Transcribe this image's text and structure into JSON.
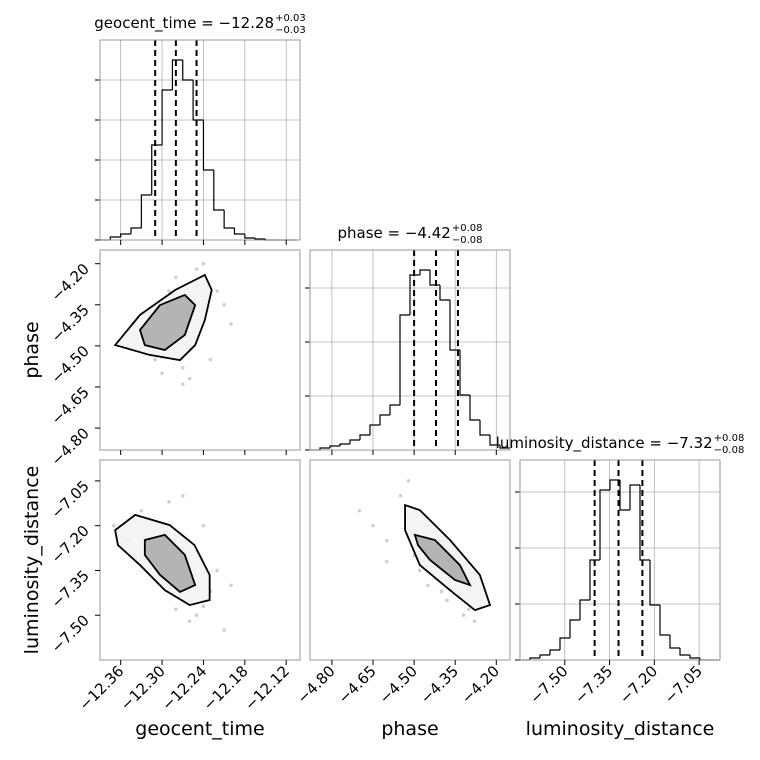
{
  "chart_data": {
    "type": "corner",
    "params": [
      {
        "label": "geocent_time",
        "title": "geocent_time = −12.28",
        "title_sup": "+0.03",
        "title_sub": "−0.03",
        "lim": [
          -12.39,
          -12.1
        ],
        "ticks": [
          {
            "value": -12.36,
            "label": "−12.36"
          },
          {
            "value": -12.3,
            "label": "−12.30"
          },
          {
            "value": -12.24,
            "label": "−12.24"
          },
          {
            "value": -12.18,
            "label": "−12.18"
          },
          {
            "value": -12.12,
            "label": "−12.12"
          }
        ],
        "quantiles": [
          -12.31,
          -12.28,
          -12.25
        ],
        "bins": [
          -12.39,
          -12.375,
          -12.36,
          -12.345,
          -12.33,
          -12.315,
          -12.3,
          -12.285,
          -12.27,
          -12.255,
          -12.24,
          -12.225,
          -12.21,
          -12.195,
          -12.18,
          -12.165,
          -12.15,
          -12.135,
          -12.12,
          -12.105
        ],
        "counts": [
          0,
          3,
          6,
          12,
          45,
          95,
          150,
          180,
          160,
          120,
          70,
          30,
          12,
          6,
          2,
          1,
          0,
          0,
          0
        ],
        "count_lim": [
          0,
          200
        ],
        "count_ticks": [
          0,
          40,
          80,
          120,
          160
        ]
      },
      {
        "label": "phase",
        "title": "phase = −4.42",
        "title_sup": "+0.08",
        "title_sub": "−0.08",
        "lim": [
          -4.88,
          -4.15
        ],
        "ticks": [
          {
            "value": -4.8,
            "label": "−4.80"
          },
          {
            "value": -4.65,
            "label": "−4.65"
          },
          {
            "value": -4.5,
            "label": "−4.50"
          },
          {
            "value": -4.35,
            "label": "−4.35"
          },
          {
            "value": -4.2,
            "label": "−4.20"
          }
        ],
        "quantiles": [
          -4.5,
          -4.42,
          -4.34
        ],
        "bins": [
          -4.88,
          -4.8435,
          -4.807,
          -4.7705,
          -4.734,
          -4.6975,
          -4.661,
          -4.6245,
          -4.588,
          -4.5515,
          -4.515,
          -4.4785,
          -4.442,
          -4.4055,
          -4.369,
          -4.3325,
          -4.296,
          -4.2595,
          -4.223,
          -4.1865,
          -4.15
        ],
        "counts": [
          0,
          2,
          4,
          6,
          10,
          15,
          25,
          35,
          45,
          135,
          175,
          180,
          165,
          150,
          100,
          55,
          30,
          15,
          5,
          2
        ],
        "count_lim": [
          0,
          200
        ],
        "count_ticks": [
          0,
          54,
          108,
          162
        ]
      },
      {
        "label": "luminosity_distance",
        "title": "luminosity_distance = −7.32",
        "title_sup": "+0.08",
        "title_sub": "−0.08",
        "lim": [
          -7.65,
          -6.98
        ],
        "ticks": [
          {
            "value": -7.5,
            "label": "−7.50"
          },
          {
            "value": -7.35,
            "label": "−7.35"
          },
          {
            "value": -7.2,
            "label": "−7.20"
          },
          {
            "value": -7.05,
            "label": "−7.05"
          }
        ],
        "quantiles": [
          -7.4,
          -7.32,
          -7.24
        ],
        "bins": [
          -7.65,
          -7.6165,
          -7.583,
          -7.5495,
          -7.516,
          -7.4825,
          -7.449,
          -7.4155,
          -7.382,
          -7.3485,
          -7.315,
          -7.2815,
          -7.248,
          -7.2145,
          -7.181,
          -7.1475,
          -7.114,
          -7.0805,
          -7.047,
          -7.0135,
          -6.98
        ],
        "counts": [
          0,
          2,
          5,
          10,
          22,
          40,
          60,
          100,
          170,
          180,
          150,
          175,
          100,
          55,
          25,
          12,
          5,
          2,
          0,
          0
        ],
        "count_lim": [
          0,
          200
        ],
        "count_ticks": [
          0,
          56,
          112,
          168
        ]
      }
    ],
    "pairs": [
      {
        "points_x": [
          -12.35,
          -12.33,
          -12.31,
          -12.3,
          -12.29,
          -12.27,
          -12.26,
          -12.25,
          -12.24,
          -12.22,
          -12.21,
          -12.34,
          -12.32,
          -12.28,
          -12.26,
          -12.23,
          -12.2,
          -12.3,
          -12.27,
          -12.25
        ],
        "points_y": [
          -4.5,
          -4.45,
          -4.55,
          -4.6,
          -4.3,
          -4.58,
          -4.62,
          -4.22,
          -4.2,
          -4.3,
          -4.35,
          -4.42,
          -4.38,
          -4.25,
          -4.5,
          -4.55,
          -4.42,
          -4.48,
          -4.64,
          -4.28
        ],
        "contours": [
          {
            "x": [
              -12.368,
              -12.332,
              -12.281,
              -12.238,
              -12.228,
              -12.238,
              -12.252,
              -12.274,
              -12.318
            ],
            "y": [
              -4.497,
              -4.387,
              -4.296,
              -4.241,
              -4.296,
              -4.406,
              -4.497,
              -4.552,
              -4.533
            ]
          },
          {
            "x": [
              -12.332,
              -12.303,
              -12.267,
              -12.252,
              -12.267,
              -12.296,
              -12.325
            ],
            "y": [
              -4.442,
              -4.351,
              -4.314,
              -4.351,
              -4.46,
              -4.515,
              -4.497
            ]
          }
        ]
      },
      {
        "points_x": [
          -12.37,
          -12.35,
          -12.33,
          -12.31,
          -12.29,
          -12.27,
          -12.26,
          -12.25,
          -12.23,
          -12.22,
          -12.21,
          -12.34,
          -12.3,
          -12.28,
          -12.26,
          -12.24,
          -12.2,
          -12.32,
          -12.27,
          -12.24
        ],
        "points_y": [
          -7.2,
          -7.25,
          -7.15,
          -7.3,
          -7.12,
          -7.1,
          -7.45,
          -7.5,
          -7.42,
          -7.35,
          -7.55,
          -7.3,
          -7.38,
          -7.48,
          -7.52,
          -7.2,
          -7.4,
          -7.18,
          -7.35,
          -7.47
        ],
        "contours": [
          {
            "x": [
              -12.368,
              -12.339,
              -12.289,
              -12.253,
              -12.231,
              -12.231,
              -12.26,
              -12.296,
              -12.332,
              -12.364
            ],
            "y": [
              -7.215,
              -7.164,
              -7.198,
              -7.265,
              -7.365,
              -7.449,
              -7.466,
              -7.416,
              -7.332,
              -7.265
            ]
          },
          {
            "x": [
              -12.325,
              -12.296,
              -12.267,
              -12.252,
              -12.274,
              -12.303,
              -12.325
            ],
            "y": [
              -7.248,
              -7.231,
              -7.298,
              -7.399,
              -7.422,
              -7.365,
              -7.298
            ]
          }
        ]
      },
      {
        "points_x": [
          -4.7,
          -4.65,
          -4.6,
          -4.55,
          -4.52,
          -4.5,
          -4.48,
          -4.45,
          -4.42,
          -4.4,
          -4.38,
          -4.35,
          -4.32,
          -4.3,
          -4.28,
          -4.25,
          -4.6,
          -4.45,
          -4.4,
          -4.35
        ],
        "points_y": [
          -7.15,
          -7.2,
          -7.25,
          -7.1,
          -7.05,
          -7.3,
          -7.35,
          -7.2,
          -7.28,
          -7.42,
          -7.45,
          -7.38,
          -7.5,
          -7.48,
          -7.52,
          -7.45,
          -7.32,
          -7.4,
          -7.25,
          -7.3
        ],
        "contours": [
          {
            "x": [
              -4.533,
              -4.479,
              -4.369,
              -4.26,
              -4.223,
              -4.278,
              -4.369,
              -4.479,
              -4.533
            ],
            "y": [
              -7.131,
              -7.148,
              -7.248,
              -7.365,
              -7.466,
              -7.483,
              -7.416,
              -7.332,
              -7.215
            ]
          },
          {
            "x": [
              -4.497,
              -4.424,
              -4.333,
              -4.296,
              -4.351,
              -4.442,
              -4.486
            ],
            "y": [
              -7.231,
              -7.248,
              -7.332,
              -7.399,
              -7.382,
              -7.315,
              -7.265
            ]
          }
        ]
      }
    ]
  }
}
